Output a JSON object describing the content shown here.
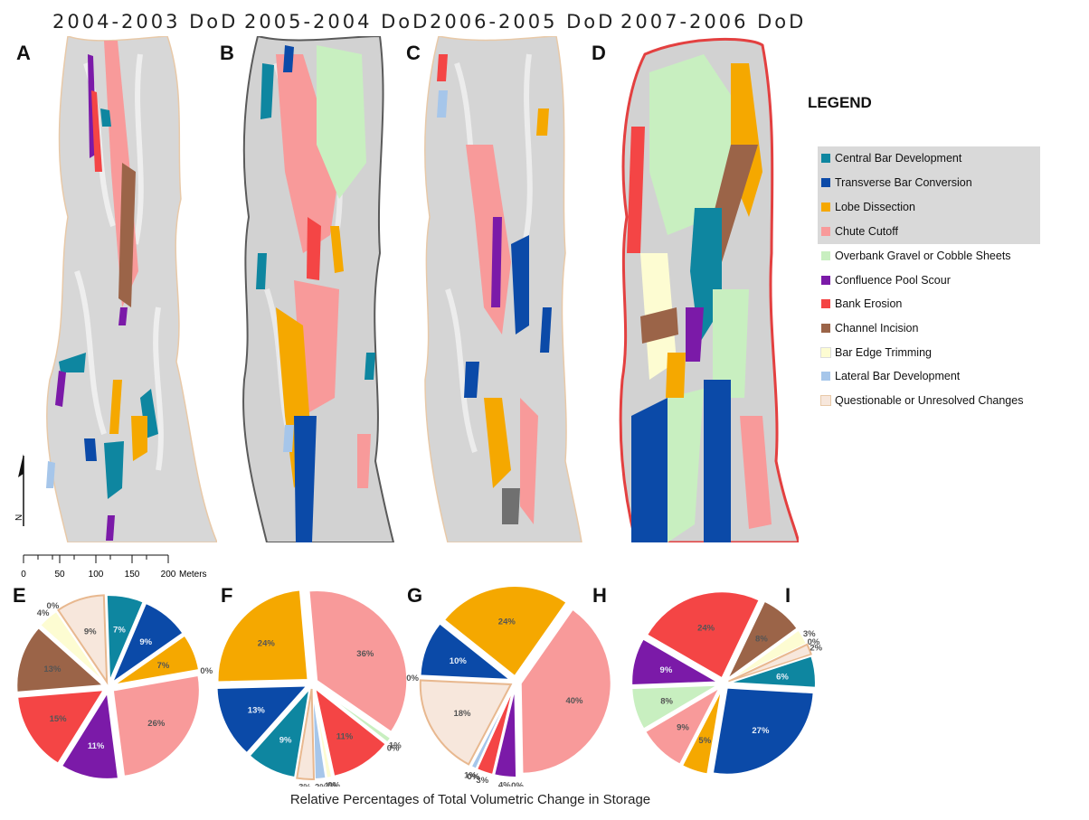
{
  "panel_titles": [
    "2004-2003 DoD",
    "2005-2004 DoD",
    "2006-2005 DoD",
    "2007-2006 DoD"
  ],
  "panel_letters": [
    "A",
    "B",
    "C",
    "D",
    "E",
    "F",
    "G",
    "H",
    "I"
  ],
  "north_label": "N",
  "scale_bar": {
    "ticks": [
      "0",
      "50",
      "100",
      "150",
      "200"
    ],
    "unit": "Meters"
  },
  "legend": {
    "title": "LEGEND",
    "items": [
      {
        "label": "Central Bar Development",
        "color": "#0e86a0"
      },
      {
        "label": "Transverse Bar Conversion",
        "color": "#0b4aa8"
      },
      {
        "label": "Lobe Dissection",
        "color": "#f5a800"
      },
      {
        "label": "Chute Cutoff",
        "color": "#f89a9a"
      },
      {
        "label": "Overbank Gravel or Cobble Sheets",
        "color": "#c8efc0"
      },
      {
        "label": "Confluence Pool Scour",
        "color": "#7b1aa8"
      },
      {
        "label": "Bank Erosion",
        "color": "#f44545"
      },
      {
        "label": "Channel Incision",
        "color": "#9b6448"
      },
      {
        "label": "Bar Edge Trimming",
        "color": "#fdfcd2"
      },
      {
        "label": "Lateral Bar Development",
        "color": "#a6c6ea"
      },
      {
        "label": "Questionable or Unresolved Changes",
        "color": "#f7e7dc"
      }
    ]
  },
  "caption": "Relative Percentages of Total Volumetric Change in Storage",
  "chart_data": [
    {
      "type": "pie",
      "panel": "E",
      "slices": [
        {
          "category": "Chute Cutoff",
          "value": 26,
          "label": "26%"
        },
        {
          "category": "Confluence Pool Scour",
          "value": 11,
          "label": "11%"
        },
        {
          "category": "Bank Erosion",
          "value": 15,
          "label": "15%"
        },
        {
          "category": "Channel Incision",
          "value": 13,
          "label": "13%"
        },
        {
          "category": "Bar Edge Trimming",
          "value": 4,
          "label": "4%"
        },
        {
          "category": "Lateral Bar Development",
          "value": 0,
          "label": "0%"
        },
        {
          "category": "Questionable or Unresolved Changes",
          "value": 9,
          "label": "9%"
        },
        {
          "category": "Central Bar Development",
          "value": 7,
          "label": "7%"
        },
        {
          "category": "Transverse Bar Conversion",
          "value": 9,
          "label": "9%"
        },
        {
          "category": "Lobe Dissection",
          "value": 7,
          "label": "7%"
        },
        {
          "category": "Overbank Gravel or Cobble Sheets",
          "value": 0,
          "label": "0%"
        }
      ]
    },
    {
      "type": "pie",
      "panel": "F",
      "slices": [
        {
          "category": "Chute Cutoff",
          "value": 36,
          "label": "36%"
        },
        {
          "category": "Overbank Gravel or Cobble Sheets",
          "value": 1,
          "label": "1%"
        },
        {
          "category": "Confluence Pool Scour",
          "value": 0,
          "label": "0%"
        },
        {
          "category": "Bank Erosion",
          "value": 11,
          "label": "11%"
        },
        {
          "category": "Channel Incision",
          "value": 0,
          "label": "0%"
        },
        {
          "category": "Bar Edge Trimming",
          "value": 1,
          "label": "1%"
        },
        {
          "category": "Lateral Bar Development",
          "value": 2,
          "label": "2%"
        },
        {
          "category": "Questionable or Unresolved Changes",
          "value": 3,
          "label": "3%"
        },
        {
          "category": "Central Bar Development",
          "value": 9,
          "label": "9%"
        },
        {
          "category": "Transverse Bar Conversion",
          "value": 13,
          "label": "13%"
        },
        {
          "category": "Lobe Dissection",
          "value": 24,
          "label": "24%"
        }
      ]
    },
    {
      "type": "pie",
      "panel": "G",
      "slices": [
        {
          "category": "Chute Cutoff",
          "value": 40,
          "label": "40%"
        },
        {
          "category": "Overbank Gravel or Cobble Sheets",
          "value": 0,
          "label": "0%"
        },
        {
          "category": "Confluence Pool Scour",
          "value": 4,
          "label": "4%"
        },
        {
          "category": "Bank Erosion",
          "value": 3,
          "label": "3%"
        },
        {
          "category": "Channel Incision",
          "value": 0,
          "label": "0%"
        },
        {
          "category": "Bar Edge Trimming",
          "value": 0,
          "label": "0%"
        },
        {
          "category": "Lateral Bar Development",
          "value": 1,
          "label": "1%"
        },
        {
          "category": "Questionable or Unresolved Changes",
          "value": 18,
          "label": "18%"
        },
        {
          "category": "Central Bar Development",
          "value": 0,
          "label": "0%"
        },
        {
          "category": "Transverse Bar Conversion",
          "value": 10,
          "label": "10%"
        },
        {
          "category": "Lobe Dissection",
          "value": 24,
          "label": "24%"
        }
      ]
    },
    {
      "type": "pie",
      "panel": "I",
      "slices": [
        {
          "category": "Bank Erosion",
          "value": 24,
          "label": "24%"
        },
        {
          "category": "Channel Incision",
          "value": 8,
          "label": "8%"
        },
        {
          "category": "Bar Edge Trimming",
          "value": 3,
          "label": "3%"
        },
        {
          "category": "Lateral Bar Development",
          "value": 0,
          "label": "0%"
        },
        {
          "category": "Questionable or Unresolved Changes",
          "value": 2,
          "label": "2%"
        },
        {
          "category": "Central Bar Development",
          "value": 6,
          "label": "6%"
        },
        {
          "category": "Transverse Bar Conversion",
          "value": 27,
          "label": "27%"
        },
        {
          "category": "Lobe Dissection",
          "value": 5,
          "label": "5%"
        },
        {
          "category": "Chute Cutoff",
          "value": 9,
          "label": "9%"
        },
        {
          "category": "Overbank Gravel or Cobble Sheets",
          "value": 8,
          "label": "8%"
        },
        {
          "category": "Confluence Pool Scour",
          "value": 9,
          "label": "9%"
        }
      ]
    }
  ]
}
